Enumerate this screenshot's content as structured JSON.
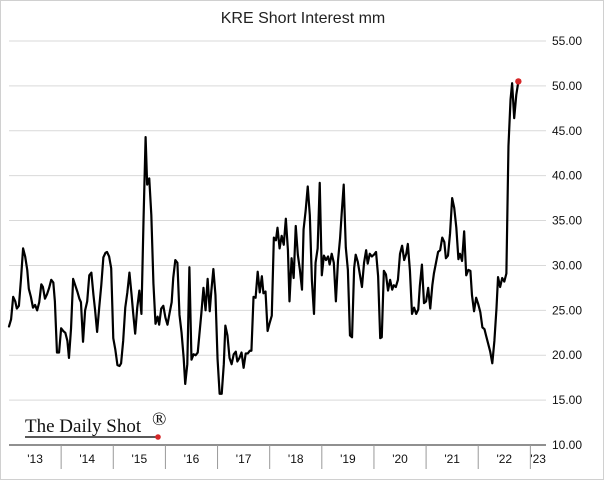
{
  "chart_data": {
    "type": "line",
    "title": "KRE Short Interest mm",
    "xlabel": "",
    "ylabel": "",
    "ylim": [
      10,
      55
    ],
    "y_ticks": [
      10,
      15,
      20,
      25,
      30,
      35,
      40,
      45,
      50,
      55
    ],
    "y_tick_labels": [
      "10.00",
      "15.00",
      "20.00",
      "25.00",
      "30.00",
      "35.00",
      "40.00",
      "45.00",
      "50.00",
      "55.00"
    ],
    "y_axis_side": "right",
    "grid": "horizontal",
    "x_tick_labels": [
      "'13",
      "'14",
      "'15",
      "'16",
      "'17",
      "'18",
      "'19",
      "'20",
      "'21",
      "'22",
      "'23"
    ],
    "xlim": [
      2013.0,
      2023.3
    ],
    "series": [
      {
        "color": "#000000",
        "last_point_marker_color": "#d62728",
        "points": [
          [
            2013.0,
            23.2
          ],
          [
            2013.04,
            24.0
          ],
          [
            2013.08,
            26.5
          ],
          [
            2013.12,
            26.0
          ],
          [
            2013.15,
            25.2
          ],
          [
            2013.19,
            25.5
          ],
          [
            2013.23,
            28.5
          ],
          [
            2013.27,
            31.9
          ],
          [
            2013.31,
            31.0
          ],
          [
            2013.35,
            29.5
          ],
          [
            2013.38,
            27.4
          ],
          [
            2013.42,
            26.5
          ],
          [
            2013.46,
            25.3
          ],
          [
            2013.5,
            25.6
          ],
          [
            2013.54,
            25.0
          ],
          [
            2013.58,
            25.9
          ],
          [
            2013.62,
            27.9
          ],
          [
            2013.65,
            27.6
          ],
          [
            2013.69,
            26.3
          ],
          [
            2013.73,
            26.8
          ],
          [
            2013.77,
            27.5
          ],
          [
            2013.81,
            28.4
          ],
          [
            2013.85,
            28.1
          ],
          [
            2013.88,
            26.0
          ],
          [
            2013.92,
            20.3
          ],
          [
            2013.96,
            20.3
          ],
          [
            2014.0,
            23.0
          ],
          [
            2014.04,
            22.7
          ],
          [
            2014.08,
            22.5
          ],
          [
            2014.12,
            21.6
          ],
          [
            2014.15,
            19.7
          ],
          [
            2014.19,
            23.0
          ],
          [
            2014.23,
            28.5
          ],
          [
            2014.27,
            27.8
          ],
          [
            2014.31,
            27.1
          ],
          [
            2014.35,
            26.3
          ],
          [
            2014.38,
            25.9
          ],
          [
            2014.42,
            21.5
          ],
          [
            2014.46,
            25.0
          ],
          [
            2014.5,
            26.0
          ],
          [
            2014.54,
            28.9
          ],
          [
            2014.58,
            29.2
          ],
          [
            2014.62,
            26.7
          ],
          [
            2014.65,
            25.1
          ],
          [
            2014.69,
            22.6
          ],
          [
            2014.73,
            25.3
          ],
          [
            2014.77,
            27.8
          ],
          [
            2014.81,
            30.9
          ],
          [
            2014.85,
            31.4
          ],
          [
            2014.88,
            31.5
          ],
          [
            2014.92,
            31.0
          ],
          [
            2014.96,
            29.7
          ],
          [
            2015.0,
            21.9
          ],
          [
            2015.04,
            20.6
          ],
          [
            2015.08,
            18.9
          ],
          [
            2015.12,
            18.8
          ],
          [
            2015.15,
            19.1
          ],
          [
            2015.19,
            21.6
          ],
          [
            2015.23,
            25.3
          ],
          [
            2015.27,
            27.0
          ],
          [
            2015.31,
            29.2
          ],
          [
            2015.35,
            26.8
          ],
          [
            2015.38,
            24.8
          ],
          [
            2015.42,
            22.4
          ],
          [
            2015.46,
            25.3
          ],
          [
            2015.5,
            27.2
          ],
          [
            2015.54,
            24.6
          ],
          [
            2015.58,
            35.0
          ],
          [
            2015.62,
            44.3
          ],
          [
            2015.65,
            39.0
          ],
          [
            2015.69,
            39.7
          ],
          [
            2015.73,
            35.6
          ],
          [
            2015.77,
            28.0
          ],
          [
            2015.81,
            23.5
          ],
          [
            2015.85,
            24.3
          ],
          [
            2015.88,
            23.4
          ],
          [
            2015.92,
            25.2
          ],
          [
            2015.96,
            25.5
          ],
          [
            2016.0,
            24.2
          ],
          [
            2016.04,
            23.4
          ],
          [
            2016.08,
            24.7
          ],
          [
            2016.12,
            25.9
          ],
          [
            2016.15,
            28.6
          ],
          [
            2016.19,
            30.6
          ],
          [
            2016.23,
            30.3
          ],
          [
            2016.27,
            24.5
          ],
          [
            2016.31,
            22.5
          ],
          [
            2016.35,
            19.7
          ],
          [
            2016.38,
            16.8
          ],
          [
            2016.42,
            19.0
          ],
          [
            2016.46,
            29.8
          ],
          [
            2016.5,
            19.5
          ],
          [
            2016.54,
            20.1
          ],
          [
            2016.58,
            20.0
          ],
          [
            2016.62,
            20.3
          ],
          [
            2016.65,
            22.2
          ],
          [
            2016.69,
            24.7
          ],
          [
            2016.73,
            27.5
          ],
          [
            2016.77,
            25.0
          ],
          [
            2016.81,
            28.5
          ],
          [
            2016.85,
            24.9
          ],
          [
            2016.88,
            27.1
          ],
          [
            2016.92,
            29.6
          ],
          [
            2016.96,
            26.7
          ],
          [
            2017.0,
            19.6
          ],
          [
            2017.04,
            15.7
          ],
          [
            2017.08,
            15.7
          ],
          [
            2017.12,
            19.0
          ],
          [
            2017.15,
            23.3
          ],
          [
            2017.19,
            22.2
          ],
          [
            2017.23,
            19.7
          ],
          [
            2017.27,
            19.0
          ],
          [
            2017.31,
            20.1
          ],
          [
            2017.35,
            20.4
          ],
          [
            2017.38,
            19.3
          ],
          [
            2017.42,
            19.7
          ],
          [
            2017.46,
            20.3
          ],
          [
            2017.5,
            18.6
          ],
          [
            2017.54,
            20.2
          ],
          [
            2017.58,
            20.2
          ],
          [
            2017.62,
            20.5
          ],
          [
            2017.65,
            20.5
          ],
          [
            2017.69,
            26.5
          ],
          [
            2017.73,
            26.4
          ],
          [
            2017.77,
            29.3
          ],
          [
            2017.81,
            27.0
          ],
          [
            2017.85,
            28.8
          ],
          [
            2017.88,
            26.9
          ],
          [
            2017.92,
            27.1
          ],
          [
            2017.96,
            22.7
          ],
          [
            2018.0,
            23.6
          ],
          [
            2018.04,
            24.4
          ],
          [
            2018.08,
            33.1
          ],
          [
            2018.12,
            32.8
          ],
          [
            2018.15,
            34.2
          ],
          [
            2018.19,
            31.9
          ],
          [
            2018.23,
            33.3
          ],
          [
            2018.27,
            32.3
          ],
          [
            2018.31,
            35.2
          ],
          [
            2018.35,
            31.7
          ],
          [
            2018.38,
            26.0
          ],
          [
            2018.42,
            30.8
          ],
          [
            2018.46,
            28.6
          ],
          [
            2018.5,
            34.4
          ],
          [
            2018.54,
            31.2
          ],
          [
            2018.58,
            29.5
          ],
          [
            2018.62,
            27.3
          ],
          [
            2018.65,
            34.0
          ],
          [
            2018.69,
            36.1
          ],
          [
            2018.73,
            38.8
          ],
          [
            2018.77,
            35.6
          ],
          [
            2018.81,
            28.3
          ],
          [
            2018.85,
            24.6
          ],
          [
            2018.88,
            30.3
          ],
          [
            2018.92,
            31.9
          ],
          [
            2018.96,
            39.2
          ],
          [
            2019.0,
            28.9
          ],
          [
            2019.04,
            31.1
          ],
          [
            2019.08,
            30.6
          ],
          [
            2019.12,
            31.0
          ],
          [
            2019.15,
            30.1
          ],
          [
            2019.19,
            31.3
          ],
          [
            2019.23,
            30.3
          ],
          [
            2019.27,
            26.0
          ],
          [
            2019.31,
            30.5
          ],
          [
            2019.35,
            33.0
          ],
          [
            2019.38,
            35.7
          ],
          [
            2019.42,
            39.0
          ],
          [
            2019.46,
            32.0
          ],
          [
            2019.5,
            29.5
          ],
          [
            2019.54,
            22.2
          ],
          [
            2019.58,
            22.0
          ],
          [
            2019.62,
            29.7
          ],
          [
            2019.65,
            31.2
          ],
          [
            2019.69,
            30.4
          ],
          [
            2019.73,
            29.0
          ],
          [
            2019.77,
            27.6
          ],
          [
            2019.81,
            30.3
          ],
          [
            2019.85,
            31.7
          ],
          [
            2019.88,
            30.2
          ],
          [
            2019.92,
            31.3
          ],
          [
            2019.96,
            31.0
          ],
          [
            2020.0,
            31.2
          ],
          [
            2020.04,
            31.5
          ],
          [
            2020.08,
            28.8
          ],
          [
            2020.12,
            21.9
          ],
          [
            2020.15,
            22.0
          ],
          [
            2020.19,
            29.4
          ],
          [
            2020.23,
            29.0
          ],
          [
            2020.27,
            27.2
          ],
          [
            2020.31,
            28.4
          ],
          [
            2020.35,
            27.3
          ],
          [
            2020.38,
            27.8
          ],
          [
            2020.42,
            27.6
          ],
          [
            2020.46,
            28.4
          ],
          [
            2020.5,
            31.3
          ],
          [
            2020.54,
            32.2
          ],
          [
            2020.58,
            30.6
          ],
          [
            2020.62,
            31.3
          ],
          [
            2020.65,
            32.4
          ],
          [
            2020.69,
            29.4
          ],
          [
            2020.73,
            24.6
          ],
          [
            2020.77,
            25.3
          ],
          [
            2020.81,
            24.6
          ],
          [
            2020.85,
            25.1
          ],
          [
            2020.88,
            27.7
          ],
          [
            2020.92,
            30.1
          ],
          [
            2020.96,
            25.8
          ],
          [
            2021.0,
            26.0
          ],
          [
            2021.04,
            27.5
          ],
          [
            2021.08,
            25.2
          ],
          [
            2021.12,
            27.8
          ],
          [
            2021.15,
            29.1
          ],
          [
            2021.19,
            30.3
          ],
          [
            2021.23,
            31.5
          ],
          [
            2021.27,
            31.7
          ],
          [
            2021.31,
            33.1
          ],
          [
            2021.35,
            32.6
          ],
          [
            2021.38,
            30.8
          ],
          [
            2021.42,
            31.1
          ],
          [
            2021.46,
            33.6
          ],
          [
            2021.5,
            37.5
          ],
          [
            2021.54,
            36.4
          ],
          [
            2021.58,
            34.2
          ],
          [
            2021.62,
            30.7
          ],
          [
            2021.65,
            31.3
          ],
          [
            2021.69,
            30.5
          ],
          [
            2021.73,
            33.8
          ],
          [
            2021.77,
            28.9
          ],
          [
            2021.81,
            29.5
          ],
          [
            2021.85,
            29.4
          ],
          [
            2021.88,
            26.7
          ],
          [
            2021.92,
            24.9
          ],
          [
            2021.96,
            26.4
          ],
          [
            2022.0,
            25.7
          ],
          [
            2022.04,
            24.8
          ],
          [
            2022.08,
            23.1
          ],
          [
            2022.12,
            22.9
          ],
          [
            2022.15,
            22.2
          ],
          [
            2022.19,
            21.3
          ],
          [
            2022.23,
            20.4
          ],
          [
            2022.27,
            19.1
          ],
          [
            2022.31,
            21.6
          ],
          [
            2022.35,
            25.2
          ],
          [
            2022.38,
            28.7
          ],
          [
            2022.42,
            27.6
          ],
          [
            2022.46,
            28.6
          ],
          [
            2022.5,
            28.2
          ],
          [
            2022.54,
            29.1
          ],
          [
            2022.58,
            43.3
          ],
          [
            2022.62,
            48.5
          ],
          [
            2022.65,
            50.3
          ],
          [
            2022.69,
            46.4
          ],
          [
            2022.73,
            49.0
          ],
          [
            2022.77,
            50.5
          ]
        ]
      }
    ]
  },
  "branding": {
    "text": "The Daily Shot",
    "mark": "®",
    "underline_color": "#222222",
    "dot_color": "#d62728"
  }
}
